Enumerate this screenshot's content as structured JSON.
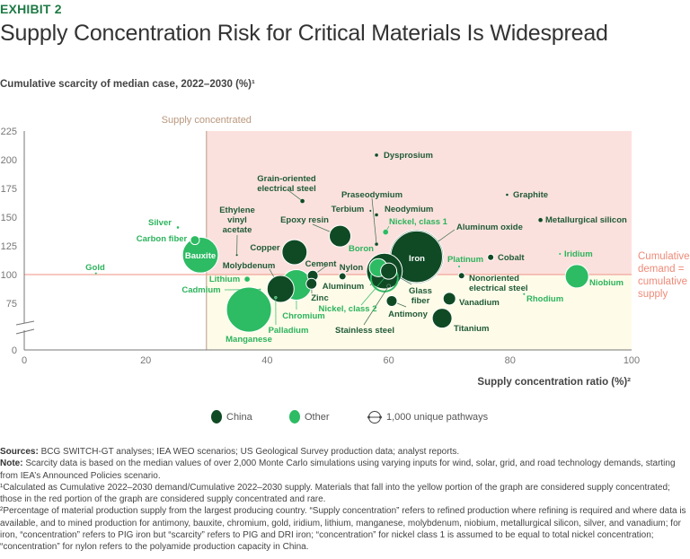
{
  "header": {
    "exhibit": "EXHIBIT 2",
    "title": "Supply Concentration Risk for Critical Materials Is Widespread"
  },
  "chart_data": {
    "type": "scatter",
    "subtype": "bubble",
    "ylabel": "Cumulative scarcity of median case, 2022–2030 (%)¹",
    "xlabel": "Supply concentration ratio (%)²",
    "xlim": [
      0,
      100
    ],
    "ylim": [
      0,
      225
    ],
    "y_axis_break": true,
    "x_ticks": [
      "0",
      "20",
      "40",
      "60",
      "80",
      "100"
    ],
    "y_ticks": [
      "225",
      "200",
      "175",
      "150",
      "125",
      "100",
      "75",
      "0"
    ],
    "grid": false,
    "region_label": "Supply concentrated",
    "region_threshold_x": 30,
    "reference_line_y": 100,
    "reference_line_label": [
      "Cumulative",
      "demand =",
      "cumulative",
      "supply"
    ],
    "colors": {
      "China": "#0f4a24",
      "Other": "#2dbb63",
      "red_region": "#fbe1dd",
      "yellow_region": "#fefbe9",
      "reference_line": "#f2a79a",
      "region_label": "#b9977c"
    },
    "legend": [
      {
        "label": "China",
        "color": "#0f4a24"
      },
      {
        "label": "Other",
        "color": "#2dbb63"
      },
      {
        "label": "1,000 unique pathways",
        "symbol": "size-reference-circle"
      }
    ],
    "legend_position": "bottom",
    "points": [
      {
        "name": "Gold",
        "x": 11.8,
        "y": 101,
        "group": "Other",
        "pathways": 30
      },
      {
        "name": "Silver",
        "x": 25.3,
        "y": 141,
        "group": "Other",
        "pathways": 60
      },
      {
        "name": "Bauxite",
        "x": 29,
        "y": 117,
        "group": "Other",
        "pathways": 11000
      },
      {
        "name": "Carbon fiber",
        "x": 28.1,
        "y": 130,
        "group": "Other",
        "pathways": 700
      },
      {
        "name": "Ethylene vinyl acetate",
        "x": 35,
        "y": 117,
        "group": "China",
        "pathways": 30
      },
      {
        "name": "Grain-oriented electrical steel",
        "x": 45.8,
        "y": 164,
        "group": "China",
        "pathways": 170
      },
      {
        "name": "Manganese",
        "x": 37,
        "y": 69.5,
        "group": "Other",
        "pathways": 17400
      },
      {
        "name": "Chromium",
        "x": 44.8,
        "y": 91,
        "group": "Other",
        "pathways": 8000
      },
      {
        "name": "Molybdenum",
        "x": 42.2,
        "y": 87.5,
        "group": "China",
        "pathways": 6250
      },
      {
        "name": "Copper",
        "x": 44.5,
        "y": 119.5,
        "group": "China",
        "pathways": 5400
      },
      {
        "name": "Lithium",
        "x": 36.7,
        "y": 96,
        "group": "Other",
        "pathways": 250
      },
      {
        "name": "Cadmium",
        "x": 38.8,
        "y": 87,
        "group": "Other",
        "pathways": 30
      },
      {
        "name": "Palladium",
        "x": 41.4,
        "y": 80,
        "group": "Other",
        "pathways": 60
      },
      {
        "name": "Cement",
        "x": 47.5,
        "y": 99,
        "group": "China",
        "pathways": 1000
      },
      {
        "name": "Zinc",
        "x": 47.3,
        "y": 92,
        "group": "China",
        "pathways": 1000
      },
      {
        "name": "Dysprosium",
        "x": 58,
        "y": 204,
        "group": "China",
        "pathways": 110
      },
      {
        "name": "Praseodymium",
        "x": 58,
        "y": 126.5,
        "group": "China",
        "pathways": 110
      },
      {
        "name": "Terbium",
        "x": 57,
        "y": 155.5,
        "group": "China",
        "pathways": 30
      },
      {
        "name": "Neodymium",
        "x": 58,
        "y": 152,
        "group": "China",
        "pathways": 110
      },
      {
        "name": "Nickel, class 1",
        "x": 59.5,
        "y": 137,
        "group": "Other",
        "pathways": 250
      },
      {
        "name": "Epoxy resin",
        "x": 52,
        "y": 133.5,
        "group": "China",
        "pathways": 4000
      },
      {
        "name": "Nylon",
        "x": 52.4,
        "y": 98.5,
        "group": "China",
        "pathways": 440
      },
      {
        "name": "Aluminum oxide",
        "x": 64.6,
        "y": 115.5,
        "group": "China",
        "pathways": 23000
      },
      {
        "name": "Iron",
        "x": 64.6,
        "y": 115.5,
        "group": "China",
        "pathways": 25000
      },
      {
        "name": "Aluminum",
        "x": 59.3,
        "y": 103,
        "group": "China",
        "pathways": 11000
      },
      {
        "name": "Nickel, class 2",
        "x": 59.3,
        "y": 97,
        "group": "Other",
        "pathways": 6250
      },
      {
        "name": "Boron",
        "x": 58.3,
        "y": 106,
        "group": "Other",
        "pathways": 2800
      },
      {
        "name": "Glass fiber",
        "x": 60,
        "y": 103,
        "group": "China",
        "pathways": 2250
      },
      {
        "name": "Stainless steel",
        "x": 60,
        "y": 90,
        "group": "China",
        "pathways": 110
      },
      {
        "name": "Antimony",
        "x": 60.5,
        "y": 77,
        "group": "China",
        "pathways": 1000
      },
      {
        "name": "Platinum",
        "x": 71.6,
        "y": 107,
        "group": "Other",
        "pathways": 30
      },
      {
        "name": "Cobalt",
        "x": 76.8,
        "y": 115,
        "group": "China",
        "pathways": 340
      },
      {
        "name": "Nonoriented electrical steel",
        "x": 72,
        "y": 99,
        "group": "China",
        "pathways": 340
      },
      {
        "name": "Vanadium",
        "x": 70,
        "y": 79,
        "group": "China",
        "pathways": 1360
      },
      {
        "name": "Titanium",
        "x": 68.8,
        "y": 62,
        "group": "China",
        "pathways": 3360
      },
      {
        "name": "Graphite",
        "x": 79.5,
        "y": 169.5,
        "group": "China",
        "pathways": 60
      },
      {
        "name": "Metallurgical silicon",
        "x": 85,
        "y": 147.5,
        "group": "China",
        "pathways": 170
      },
      {
        "name": "Iridium",
        "x": 88.2,
        "y": 118,
        "group": "Other",
        "pathways": 20
      },
      {
        "name": "Niobium",
        "x": 91,
        "y": 98.5,
        "group": "Other",
        "pathways": 4700
      },
      {
        "name": "Rhodium",
        "x": 82.3,
        "y": 83,
        "group": "Other",
        "pathways": 30
      }
    ]
  },
  "notes": {
    "sources_label": "Sources:",
    "sources": "BCG SWITCH-GT analyses; IEA WEO scenarios; US Geological Survey production data; analyst reports.",
    "note_label": "Note:",
    "note": "Scarcity data is based on the median values of over 2,000 Monte Carlo simulations using varying inputs for wind, solar, grid, and road technology demands, starting from IEA’s Announced Policies scenario.",
    "footnote1": "¹Calculated as Cumulative 2022–2030 demand/Cumulative 2022–2030 supply. Materials that fall into the yellow portion of the graph are considered supply concentrated; those in the red portion of the graph are considered supply concentrated and rare.",
    "footnote2": "²Percentage of material production supply from the largest producing country. “Supply concentration” refers to refined production where refining is required and where data is available, and to mined production for antimony, bauxite, chromium, gold, iridium, lithium, manganese, molybdenum, niobium, metallurgical silicon, silver, and vanadium; for iron, “concentration” refers to PIG iron but “scarcity” refers to PIG and DRI iron; “concentration” for nickel class 1 is assumed to be equal to total nickel concentration; “concentration” for nylon refers to the polyamide production capacity in China."
  }
}
